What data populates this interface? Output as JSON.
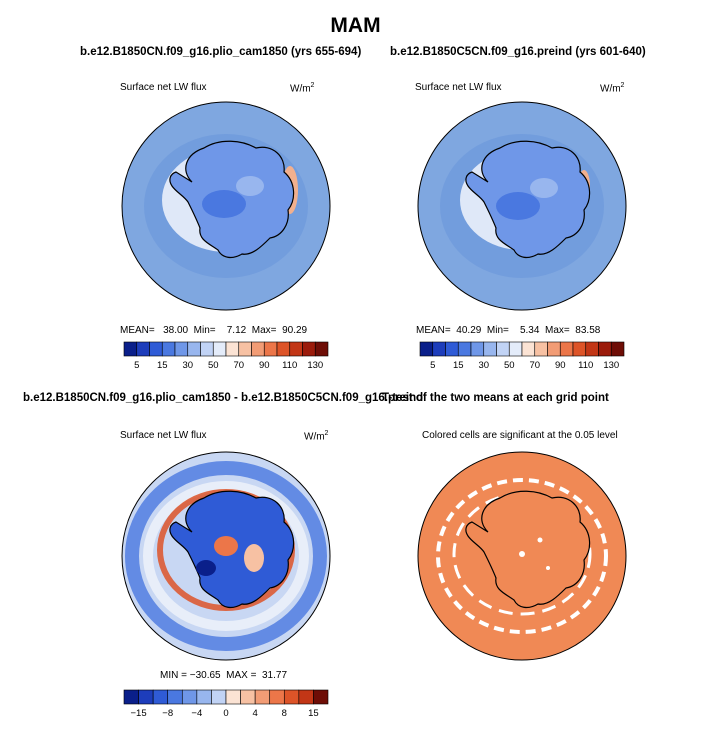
{
  "title": "MAM",
  "colors": {
    "ocean_blue": "#7fa7e0",
    "ice_edge_blue": "#a8c4ee",
    "deep_blue": "#3b5fc9",
    "significant": "#f08955",
    "coast": "#000000"
  },
  "panels": [
    {
      "id": "case1",
      "title": "b.e12.B1850CN.f09_g16.plio_cam1850 (yrs 655-694)",
      "variable": "Surface net LW flux",
      "units": "W/m",
      "units_sup": "2",
      "stats": {
        "mean_label": "MEAN=",
        "mean": "38.00",
        "min_label": "Min=",
        "min": "7.12",
        "max_label": "Max=",
        "max": "90.29"
      }
    },
    {
      "id": "case2",
      "title": "b.e12.B1850C5CN.f09_g16.preind (yrs 601-640)",
      "variable": "Surface net LW flux",
      "units": "W/m",
      "units_sup": "2",
      "stats": {
        "mean_label": "MEAN=",
        "mean": "40.29",
        "min_label": "Min=",
        "min": "5.34",
        "max_label": "Max=",
        "max": "83.58"
      }
    },
    {
      "id": "difference",
      "title": "b.e12.B1850CN.f09_g16.plio_cam1850 - b.e12.B1850C5CN.f09_g16.preind",
      "variable": "Surface net LW flux",
      "units": "W/m",
      "units_sup": "2",
      "stats_text": "MIN = −30.65  MAX =  31.77"
    },
    {
      "id": "ttest",
      "title": "T-test of the two means at each grid point",
      "variable": "Colored cells are significant at the 0.05 level"
    }
  ],
  "chart_data": [
    {
      "type": "heatmap",
      "title": "b.e12.B1850CN.f09_g16.plio_cam1850 (yrs 655-694)",
      "variable": "Surface net LW flux",
      "units": "W/m2",
      "projection": "south polar stereographic",
      "summary": {
        "mean": 38.0,
        "min": 7.12,
        "max": 90.29
      },
      "colorbar_levels": [
        5,
        10,
        15,
        20,
        30,
        40,
        50,
        60,
        70,
        80,
        90,
        100,
        110,
        120,
        130
      ],
      "colorbar_tick_labels": [
        "5",
        "15",
        "30",
        "50",
        "70",
        "90",
        "110",
        "130"
      ],
      "colorbar_colors": [
        "#0a1f8a",
        "#1d3dbb",
        "#2f5bd6",
        "#4a78e0",
        "#6f97e8",
        "#98b6ee",
        "#c1d3f5",
        "#e4ecfa",
        "#fbe3d4",
        "#f7c1a3",
        "#f29c75",
        "#ec7649",
        "#dd5428",
        "#c23616",
        "#9b1b0b",
        "#6e0d06"
      ]
    },
    {
      "type": "heatmap",
      "title": "b.e12.B1850C5CN.f09_g16.preind (yrs 601-640)",
      "variable": "Surface net LW flux",
      "units": "W/m2",
      "projection": "south polar stereographic",
      "summary": {
        "mean": 40.29,
        "min": 5.34,
        "max": 83.58
      },
      "colorbar_levels": [
        5,
        10,
        15,
        20,
        30,
        40,
        50,
        60,
        70,
        80,
        90,
        100,
        110,
        120,
        130
      ],
      "colorbar_tick_labels": [
        "5",
        "15",
        "30",
        "50",
        "70",
        "90",
        "110",
        "130"
      ],
      "colorbar_colors": [
        "#0a1f8a",
        "#1d3dbb",
        "#2f5bd6",
        "#4a78e0",
        "#6f97e8",
        "#98b6ee",
        "#c1d3f5",
        "#e4ecfa",
        "#fbe3d4",
        "#f7c1a3",
        "#f29c75",
        "#ec7649",
        "#dd5428",
        "#c23616",
        "#9b1b0b",
        "#6e0d06"
      ]
    },
    {
      "type": "heatmap",
      "title": "b.e12.B1850CN.f09_g16.plio_cam1850 - b.e12.B1850C5CN.f09_g16.preind",
      "variable": "Surface net LW flux",
      "units": "W/m2",
      "projection": "south polar stereographic",
      "summary": {
        "min": -30.65,
        "max": 31.77
      },
      "colorbar_levels": [
        -15,
        -12,
        -8,
        -6,
        -4,
        -2,
        0,
        2,
        4,
        6,
        8,
        12,
        15
      ],
      "colorbar_tick_labels": [
        "-15",
        "-8",
        "-4",
        "0",
        "4",
        "8",
        "15"
      ],
      "colorbar_colors": [
        "#0a1f8a",
        "#1d3dbb",
        "#2f5bd6",
        "#4a78e0",
        "#6f97e8",
        "#98b6ee",
        "#c1d3f5",
        "#fbe3d4",
        "#f7c1a3",
        "#f29c75",
        "#ec7649",
        "#dd5428",
        "#c23616",
        "#6e0d06"
      ]
    },
    {
      "type": "heatmap",
      "title": "T-test of the two means at each grid point",
      "variable": "Colored cells are significant at the 0.05 level",
      "significance_level": 0.05,
      "projection": "south polar stereographic"
    }
  ]
}
